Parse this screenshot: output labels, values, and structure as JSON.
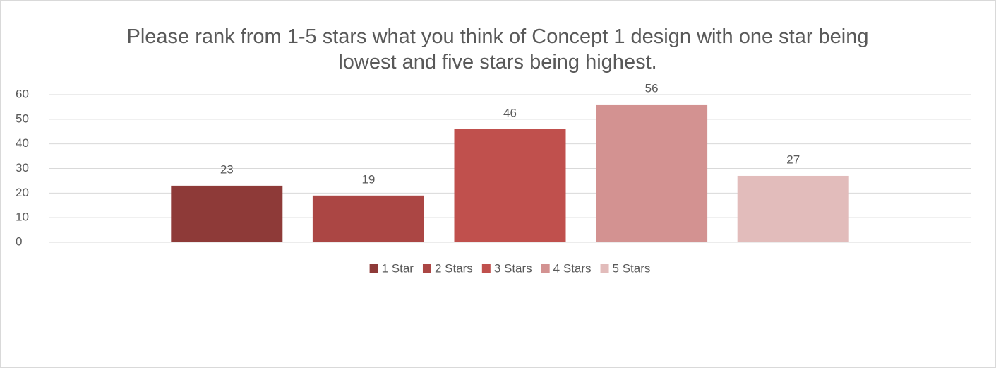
{
  "chart_data": {
    "type": "bar",
    "title": "Please rank from 1-5 stars what you think of Concept 1 design with one star being lowest and five stars being highest.",
    "categories": [
      null
    ],
    "series": [
      {
        "name": "1 Star",
        "color": "#8e3a38",
        "values": [
          23
        ]
      },
      {
        "name": "2 Stars",
        "color": "#ab4644",
        "values": [
          19
        ]
      },
      {
        "name": "3 Stars",
        "color": "#c0504d",
        "values": [
          46
        ]
      },
      {
        "name": "4 Stars",
        "color": "#d39291",
        "values": [
          56
        ]
      },
      {
        "name": "5 Stars",
        "color": "#e2bcbb",
        "values": [
          27
        ]
      }
    ],
    "ylim": [
      0,
      60
    ],
    "yticks": [
      0,
      10,
      20,
      30,
      40,
      50,
      60
    ],
    "grid": true,
    "legend": "bottom"
  }
}
